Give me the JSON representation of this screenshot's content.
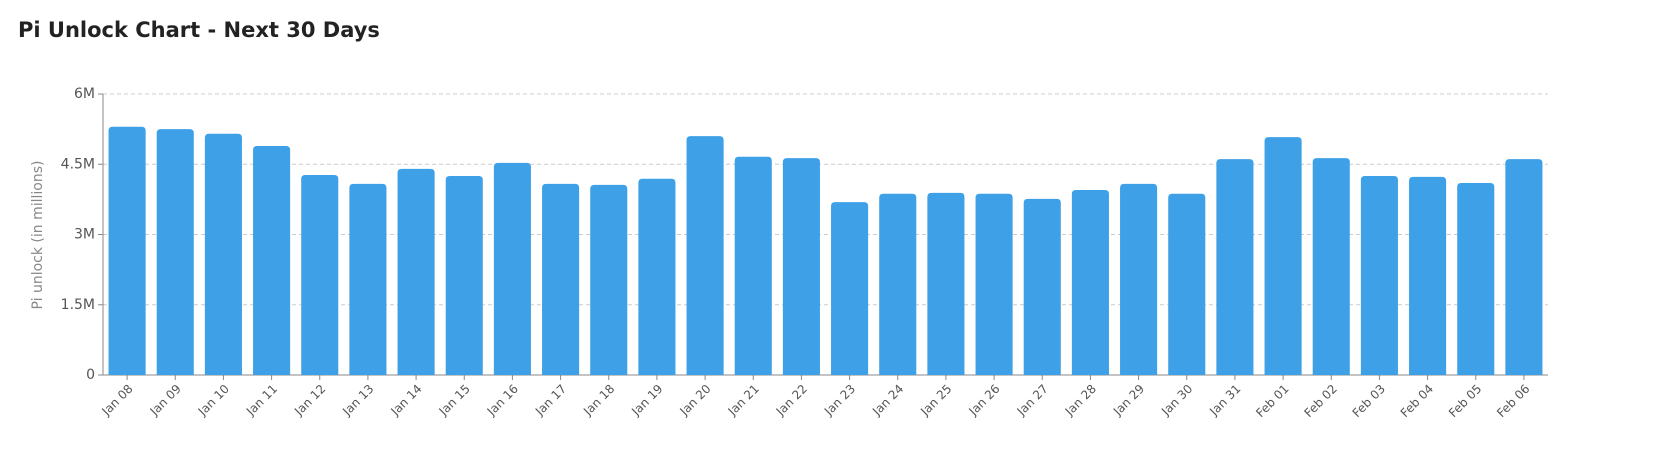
{
  "chart_data": {
    "type": "bar",
    "title": "Pi Unlock Chart - Next 30 Days",
    "y_label": "Pi unlock (in millions)",
    "categories": [
      "Jan 08",
      "Jan 09",
      "Jan 10",
      "Jan 11",
      "Jan 12",
      "Jan 13",
      "Jan 14",
      "Jan 15",
      "Jan 16",
      "Jan 17",
      "Jan 18",
      "Jan 19",
      "Jan 20",
      "Jan 21",
      "Jan 22",
      "Jan 23",
      "Jan 24",
      "Jan 25",
      "Jan 26",
      "Jan 27",
      "Jan 28",
      "Jan 29",
      "Jan 30",
      "Jan 31",
      "Feb 01",
      "Feb 02",
      "Feb 03",
      "Feb 04",
      "Feb 05",
      "Feb 06"
    ],
    "values": [
      5.3,
      5.25,
      5.15,
      4.89,
      4.27,
      4.08,
      4.4,
      4.25,
      4.53,
      4.08,
      4.06,
      4.19,
      5.1,
      4.66,
      4.63,
      3.69,
      3.87,
      3.89,
      3.87,
      3.76,
      3.95,
      4.08,
      3.87,
      4.61,
      5.08,
      4.63,
      4.25,
      4.23,
      4.1,
      4.61
    ],
    "color": "#3ea1e8",
    "ylim": [
      0,
      6
    ],
    "yticks": [
      {
        "value": 0,
        "label": "0"
      },
      {
        "value": 1.5,
        "label": "1.5M"
      },
      {
        "value": 3,
        "label": "3M"
      },
      {
        "value": 4.5,
        "label": "4.5M"
      },
      {
        "value": 6,
        "label": "6M"
      }
    ],
    "grid": true
  }
}
